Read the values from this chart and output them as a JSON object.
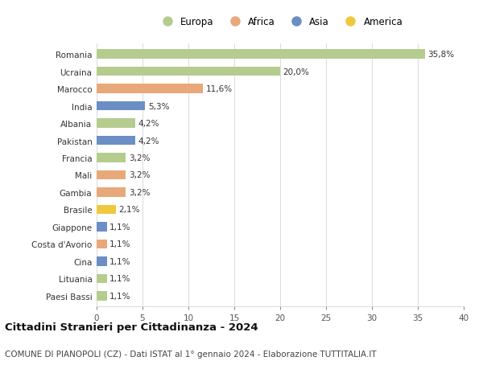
{
  "categories": [
    "Paesi Bassi",
    "Lituania",
    "Cina",
    "Costa d'Avorio",
    "Giappone",
    "Brasile",
    "Gambia",
    "Mali",
    "Francia",
    "Pakistan",
    "Albania",
    "India",
    "Marocco",
    "Ucraina",
    "Romania"
  ],
  "values": [
    1.1,
    1.1,
    1.1,
    1.1,
    1.1,
    2.1,
    3.2,
    3.2,
    3.2,
    4.2,
    4.2,
    5.3,
    11.6,
    20.0,
    35.8
  ],
  "labels": [
    "1,1%",
    "1,1%",
    "1,1%",
    "1,1%",
    "1,1%",
    "2,1%",
    "3,2%",
    "3,2%",
    "3,2%",
    "4,2%",
    "4,2%",
    "5,3%",
    "11,6%",
    "20,0%",
    "35,8%"
  ],
  "colors": [
    "#b5cc8e",
    "#b5cc8e",
    "#6b8ec4",
    "#e8a87a",
    "#6b8ec4",
    "#f0c840",
    "#e8a87a",
    "#e8a87a",
    "#b5cc8e",
    "#6b8ec4",
    "#b5cc8e",
    "#6b8ec4",
    "#e8a87a",
    "#b5cc8e",
    "#b5cc8e"
  ],
  "legend_labels": [
    "Europa",
    "Africa",
    "Asia",
    "America"
  ],
  "legend_colors": [
    "#b5cc8e",
    "#e8a87a",
    "#6b8ec4",
    "#f0c840"
  ],
  "title": "Cittadini Stranieri per Cittadinanza - 2024",
  "subtitle": "COMUNE DI PIANOPOLI (CZ) - Dati ISTAT al 1° gennaio 2024 - Elaborazione TUTTITALIA.IT",
  "xlim": [
    0,
    40
  ],
  "xticks": [
    0,
    5,
    10,
    15,
    20,
    25,
    30,
    35,
    40
  ],
  "background_color": "#ffffff",
  "grid_color": "#dddddd",
  "bar_height": 0.55,
  "label_fontsize": 7.5,
  "tick_fontsize": 7.5,
  "legend_fontsize": 8.5,
  "title_fontsize": 9.5,
  "subtitle_fontsize": 7.5
}
